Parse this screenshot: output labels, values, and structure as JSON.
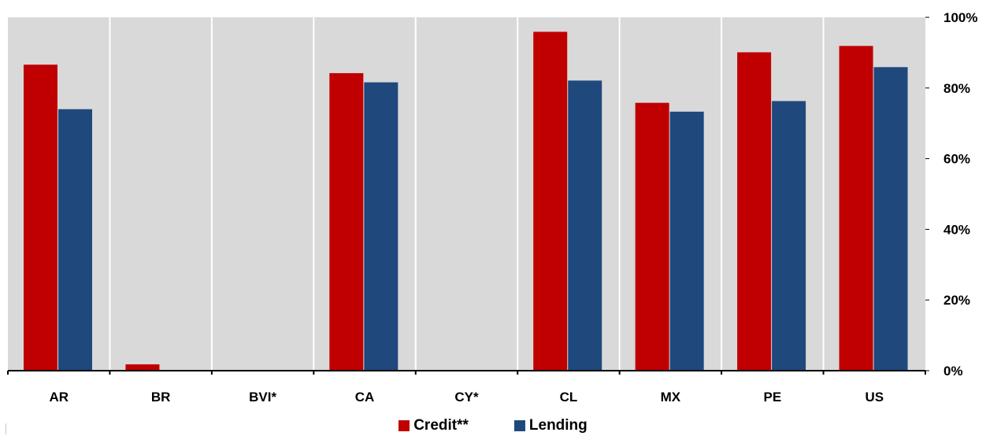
{
  "chart_data": {
    "type": "bar",
    "categories": [
      "AR",
      "BR",
      "BVI*",
      "CA",
      "CY*",
      "CL",
      "MX",
      "PE",
      "US"
    ],
    "series": [
      {
        "name": "Credit**",
        "color": "#c00000",
        "values": [
          86.6,
          1.8,
          0,
          84.2,
          0,
          95.9,
          75.8,
          90.1,
          91.9
        ]
      },
      {
        "name": "Lending",
        "color": "#1f497d",
        "values": [
          74.0,
          0,
          0,
          81.6,
          0,
          82.1,
          73.3,
          76.3,
          85.9
        ]
      }
    ],
    "yaxis": {
      "position": "right",
      "ylim": [
        0,
        100
      ],
      "ticks": [
        0,
        20,
        40,
        60,
        80,
        100
      ],
      "tick_labels": [
        "0%",
        "20%",
        "40%",
        "60%",
        "80%",
        "100%"
      ]
    },
    "background": "#d9d9d9",
    "grid": "vertical separators",
    "legend_placement": "bottom-center"
  }
}
